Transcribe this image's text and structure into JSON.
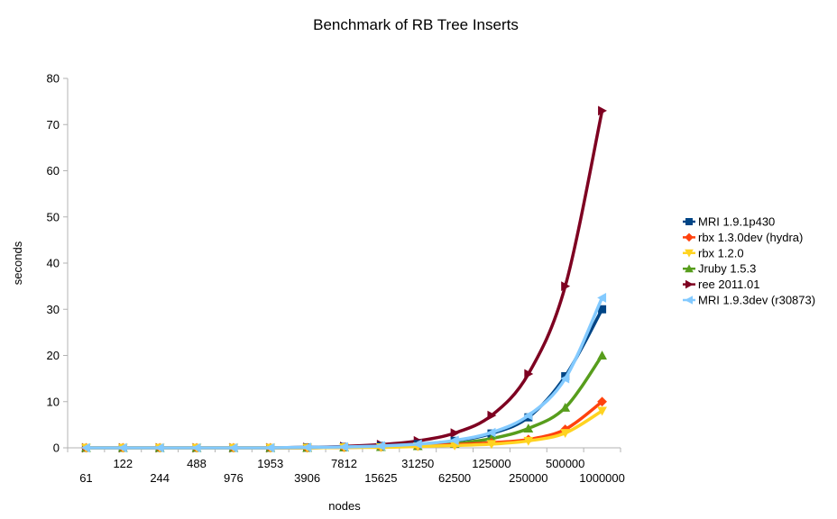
{
  "chart_data": {
    "type": "line",
    "title": "Benchmark of RB Tree Inserts",
    "xlabel": "nodes",
    "ylabel": "seconds",
    "ylim": [
      0,
      80
    ],
    "yticks": [
      0,
      10,
      20,
      30,
      40,
      50,
      60,
      70,
      80
    ],
    "grid": false,
    "legend": "right",
    "categories": [
      "61",
      "122",
      "244",
      "488",
      "976",
      "1953",
      "3906",
      "7812",
      "15625",
      "31250",
      "62500",
      "125000",
      "250000",
      "500000",
      "1000000"
    ],
    "series": [
      {
        "name": "MRI 1.9.1p430",
        "color": "#004586",
        "marker": "square",
        "values": [
          0,
          0,
          0,
          0,
          0,
          0,
          0.1,
          0.2,
          0.4,
          0.8,
          1.5,
          3.1,
          6.6,
          15.5,
          30
        ]
      },
      {
        "name": "rbx 1.3.0dev (hydra)",
        "color": "#ff420e",
        "marker": "diamond",
        "values": [
          0,
          0,
          0,
          0,
          0,
          0,
          0,
          0.1,
          0.2,
          0.4,
          0.7,
          1.1,
          1.8,
          4,
          10
        ]
      },
      {
        "name": "rbx 1.2.0",
        "color": "#ffd320",
        "marker": "triangle-down",
        "values": [
          0,
          0,
          0,
          0,
          0,
          0,
          0,
          0.1,
          0.1,
          0.3,
          0.5,
          0.8,
          1.5,
          3.2,
          8
        ]
      },
      {
        "name": "Jruby 1.5.3",
        "color": "#579d1c",
        "marker": "triangle-up",
        "values": [
          0,
          0,
          0,
          0,
          0,
          0,
          0,
          0.1,
          0.2,
          0.4,
          0.9,
          2,
          4.2,
          8.7,
          20
        ]
      },
      {
        "name": "ree 2011.01",
        "color": "#7e0021",
        "marker": "triangle-right",
        "values": [
          0,
          0,
          0,
          0,
          0,
          0,
          0.1,
          0.3,
          0.7,
          1.5,
          3.2,
          7,
          16,
          35,
          73
        ]
      },
      {
        "name": "MRI 1.9.3dev (r30873)",
        "color": "#83caff",
        "marker": "triangle-left",
        "values": [
          0,
          0,
          0,
          0,
          0,
          0,
          0.1,
          0.2,
          0.4,
          0.8,
          1.6,
          3.3,
          7,
          15,
          32.5
        ]
      }
    ]
  }
}
